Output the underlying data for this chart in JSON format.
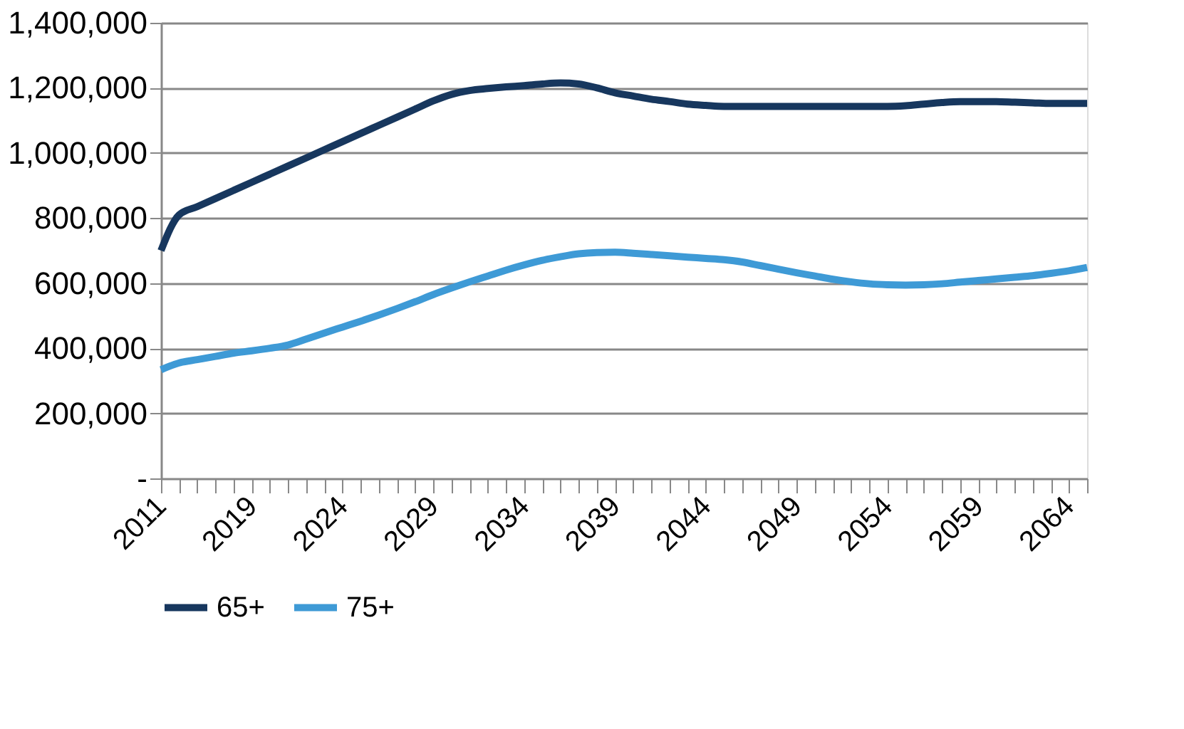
{
  "chart_data": {
    "type": "line",
    "categories": [
      "2011",
      null,
      null,
      null,
      null,
      "2019",
      null,
      null,
      null,
      null,
      "2024",
      null,
      null,
      null,
      null,
      "2029",
      null,
      null,
      null,
      null,
      "2034",
      null,
      null,
      null,
      null,
      "2039",
      null,
      null,
      null,
      null,
      "2044",
      null,
      null,
      null,
      null,
      "2049",
      null,
      null,
      null,
      null,
      "2054",
      null,
      null,
      null,
      null,
      "2059",
      null,
      null,
      null,
      null,
      "2064",
      null
    ],
    "series": [
      {
        "name": "65+",
        "color": "#17375e",
        "values": [
          700000,
          810000,
          835000,
          860000,
          885000,
          910000,
          935000,
          960000,
          985000,
          1010000,
          1035000,
          1060000,
          1085000,
          1110000,
          1135000,
          1160000,
          1180000,
          1192000,
          1198000,
          1203000,
          1207000,
          1212000,
          1215000,
          1212000,
          1200000,
          1185000,
          1175000,
          1165000,
          1158000,
          1150000,
          1146000,
          1143000,
          1143000,
          1143000,
          1143000,
          1143000,
          1143000,
          1143000,
          1143000,
          1143000,
          1143000,
          1145000,
          1150000,
          1155000,
          1158000,
          1158000,
          1158000,
          1156000,
          1154000,
          1152000,
          1152000,
          1152000
        ]
      },
      {
        "name": "75+",
        "color": "#3e9ad6",
        "values": [
          334000,
          355000,
          365000,
          375000,
          385000,
          392000,
          400000,
          410000,
          428000,
          447000,
          465000,
          483000,
          502000,
          522000,
          543000,
          565000,
          585000,
          604000,
          622000,
          640000,
          656000,
          670000,
          681000,
          690000,
          694000,
          695000,
          692000,
          688000,
          684000,
          680000,
          676000,
          672000,
          665000,
          654000,
          643000,
          632000,
          622000,
          612000,
          604000,
          598000,
          595000,
          594000,
          595000,
          598000,
          603000,
          608000,
          613000,
          618000,
          623000,
          630000,
          638000,
          648000
        ]
      }
    ],
    "ylim": [
      0,
      1400000
    ],
    "yticks": [
      {
        "value": 0,
        "label": "-"
      },
      {
        "value": 200000,
        "label": "200,000"
      },
      {
        "value": 400000,
        "label": "400,000"
      },
      {
        "value": 600000,
        "label": "600,000"
      },
      {
        "value": 800000,
        "label": "800,000"
      },
      {
        "value": 1000000,
        "label": "1,000,000"
      },
      {
        "value": 1200000,
        "label": "1,200,000"
      },
      {
        "value": 1400000,
        "label": "1,400,000"
      }
    ],
    "grid": "y",
    "legend": "bottom",
    "marker": "none",
    "line_style": "solid"
  }
}
